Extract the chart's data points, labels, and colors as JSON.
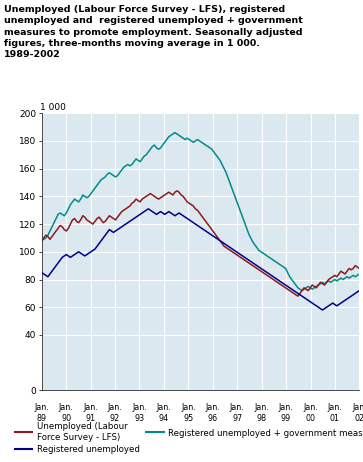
{
  "title_lines": [
    "Unemployed (Labour Force Survey - LFS), registered",
    "unemployed and  registered unemployed + government",
    "measures to promote employment. Seasonally adjusted",
    "figures, three-months moving average in 1 000.",
    "1989-2002"
  ],
  "ylabel": "1 000",
  "ylim": [
    0,
    200
  ],
  "yticks": [
    0,
    40,
    60,
    80,
    100,
    120,
    140,
    160,
    180,
    200
  ],
  "xlabel_years": [
    "89",
    "90",
    "91",
    "92",
    "93",
    "94",
    "95",
    "96",
    "97",
    "98",
    "99",
    "00",
    "01",
    "02"
  ],
  "colors": {
    "lfs": "#8B1A1A",
    "registered": "#00008B",
    "gov": "#008B8B"
  },
  "background_color": "#dce8f0",
  "grid_color": "#ffffff",
  "lfs_data": [
    108,
    110,
    112,
    111,
    109,
    111,
    113,
    115,
    117,
    119,
    118,
    116,
    115,
    117,
    120,
    123,
    124,
    122,
    121,
    123,
    126,
    125,
    123,
    122,
    121,
    120,
    122,
    124,
    125,
    123,
    121,
    122,
    124,
    126,
    125,
    124,
    123,
    125,
    127,
    129,
    130,
    131,
    132,
    133,
    135,
    136,
    138,
    137,
    136,
    138,
    139,
    140,
    141,
    142,
    141,
    140,
    139,
    138,
    139,
    140,
    141,
    142,
    143,
    142,
    141,
    143,
    144,
    143,
    141,
    140,
    138,
    136,
    135,
    134,
    133,
    131,
    130,
    128,
    126,
    124,
    122,
    120,
    118,
    116,
    114,
    112,
    110,
    108,
    106,
    104,
    103,
    102,
    101,
    100,
    99,
    98,
    97,
    96,
    95,
    94,
    93,
    92,
    91,
    90,
    89,
    88,
    87,
    86,
    85,
    84,
    83,
    82,
    81,
    80,
    79,
    78,
    77,
    76,
    75,
    74,
    73,
    72,
    71,
    70,
    69,
    68,
    70,
    72,
    74,
    73,
    72,
    74,
    76,
    75,
    74,
    76,
    78,
    77,
    76,
    78,
    80,
    81,
    82,
    83,
    82,
    84,
    86,
    85,
    84,
    86,
    88,
    87,
    88,
    90,
    89,
    88
  ],
  "registered_data": [
    85,
    84,
    83,
    82,
    84,
    86,
    88,
    90,
    92,
    94,
    96,
    97,
    98,
    97,
    96,
    97,
    98,
    99,
    100,
    99,
    98,
    97,
    98,
    99,
    100,
    101,
    102,
    104,
    106,
    108,
    110,
    112,
    114,
    116,
    115,
    114,
    115,
    116,
    117,
    118,
    119,
    120,
    121,
    122,
    123,
    124,
    125,
    126,
    127,
    128,
    129,
    130,
    131,
    130,
    129,
    128,
    127,
    128,
    129,
    128,
    127,
    128,
    129,
    128,
    127,
    126,
    127,
    128,
    127,
    126,
    125,
    124,
    123,
    122,
    121,
    120,
    119,
    118,
    117,
    116,
    115,
    114,
    113,
    112,
    111,
    110,
    109,
    108,
    107,
    106,
    105,
    104,
    103,
    102,
    101,
    100,
    99,
    98,
    97,
    96,
    95,
    94,
    93,
    92,
    91,
    90,
    89,
    88,
    87,
    86,
    85,
    84,
    83,
    82,
    81,
    80,
    79,
    78,
    77,
    76,
    75,
    74,
    73,
    72,
    71,
    70,
    69,
    68,
    67,
    66,
    65,
    64,
    63,
    62,
    61,
    60,
    59,
    58,
    59,
    60,
    61,
    62,
    63,
    62,
    61,
    62,
    63,
    64,
    65,
    66,
    67,
    68,
    69,
    70,
    71,
    72
  ],
  "gov_data": [
    108,
    109,
    110,
    112,
    115,
    118,
    121,
    124,
    127,
    128,
    127,
    126,
    128,
    131,
    134,
    136,
    138,
    137,
    136,
    138,
    141,
    140,
    139,
    140,
    142,
    144,
    146,
    148,
    150,
    152,
    153,
    154,
    156,
    157,
    156,
    155,
    154,
    155,
    157,
    159,
    161,
    162,
    163,
    162,
    163,
    165,
    167,
    166,
    165,
    167,
    169,
    170,
    172,
    174,
    176,
    177,
    175,
    174,
    175,
    177,
    179,
    181,
    183,
    184,
    185,
    186,
    185,
    184,
    183,
    182,
    181,
    182,
    181,
    180,
    179,
    180,
    181,
    180,
    179,
    178,
    177,
    176,
    175,
    174,
    172,
    170,
    168,
    166,
    163,
    160,
    157,
    153,
    149,
    145,
    141,
    137,
    133,
    129,
    125,
    121,
    117,
    113,
    110,
    107,
    105,
    103,
    101,
    100,
    99,
    98,
    97,
    96,
    95,
    94,
    93,
    92,
    91,
    90,
    89,
    88,
    85,
    82,
    80,
    78,
    76,
    74,
    73,
    72,
    73,
    74,
    75,
    74,
    73,
    74,
    75,
    76,
    77,
    78,
    77,
    78,
    79,
    78,
    79,
    80,
    79,
    80,
    81,
    80,
    81,
    82,
    81,
    82,
    83,
    82,
    83,
    84
  ]
}
